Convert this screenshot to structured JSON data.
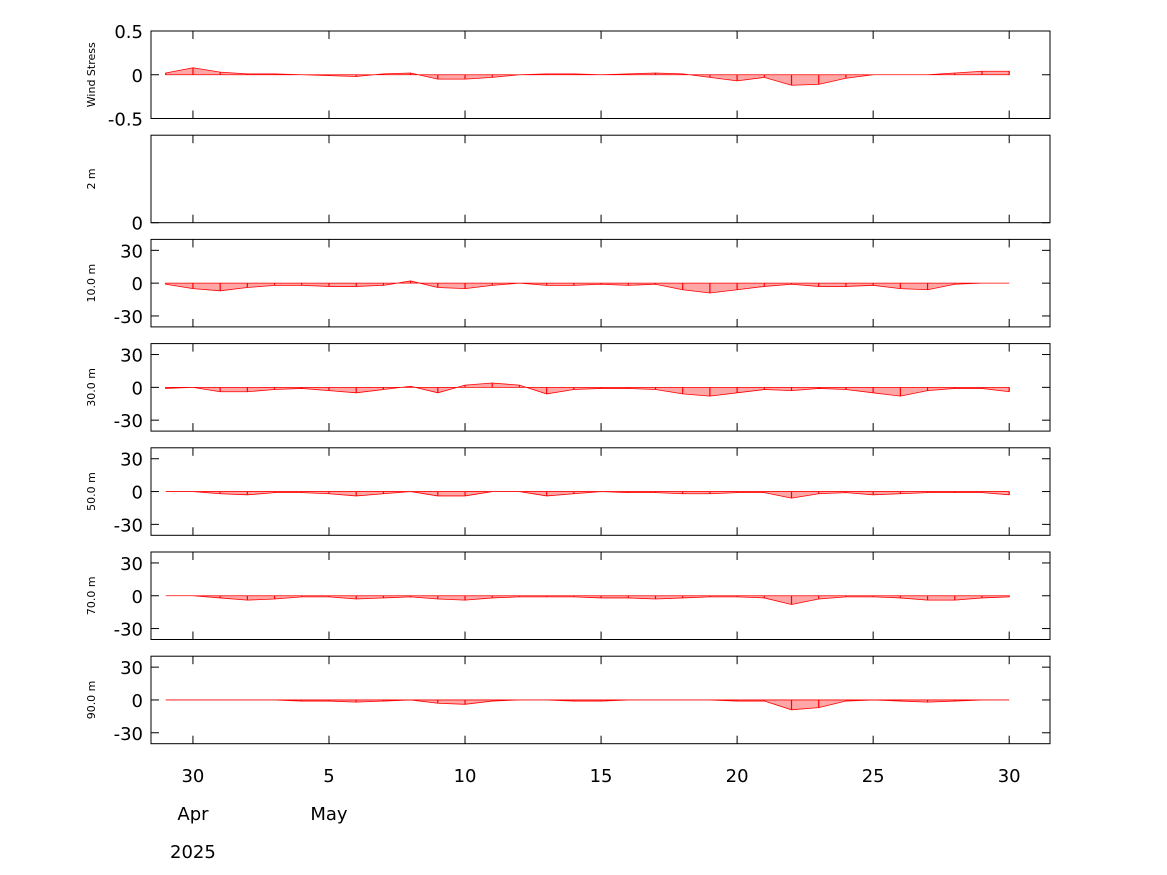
{
  "chart_data": {
    "type": "stick",
    "x": [
      "2025-04-29",
      "2025-04-30",
      "2025-05-01",
      "2025-05-02",
      "2025-05-03",
      "2025-05-04",
      "2025-05-05",
      "2025-05-06",
      "2025-05-07",
      "2025-05-08",
      "2025-05-09",
      "2025-05-10",
      "2025-05-11",
      "2025-05-12",
      "2025-05-13",
      "2025-05-14",
      "2025-05-15",
      "2025-05-16",
      "2025-05-17",
      "2025-05-18",
      "2025-05-19",
      "2025-05-20",
      "2025-05-21",
      "2025-05-22",
      "2025-05-23",
      "2025-05-24",
      "2025-05-25",
      "2025-05-26",
      "2025-05-27",
      "2025-05-28",
      "2025-05-29",
      "2025-05-30"
    ],
    "xlim": [
      "2025-04-28T11:00",
      "2025-05-31T12:00"
    ],
    "xticks": [
      {
        "value": "2025-04-30",
        "label": "30"
      },
      {
        "value": "2025-05-05",
        "label": "5"
      },
      {
        "value": "2025-05-10",
        "label": "10"
      },
      {
        "value": "2025-05-15",
        "label": "15"
      },
      {
        "value": "2025-05-20",
        "label": "20"
      },
      {
        "value": "2025-05-25",
        "label": "25"
      },
      {
        "value": "2025-05-30",
        "label": "30"
      }
    ],
    "month_labels": [
      {
        "value": "2025-04-30",
        "label": "Apr"
      },
      {
        "value": "2025-05-05",
        "label": "May"
      }
    ],
    "year_label": {
      "value": "2025-04-30",
      "label": "2025"
    },
    "panels": [
      {
        "ylabel": "Wind Stress",
        "ylim": [
          -0.5,
          0.5
        ],
        "yticks": [
          -0.5,
          0,
          0.5
        ],
        "color": "#ff0000",
        "values": [
          0.02,
          0.08,
          0.03,
          0.01,
          0.01,
          0,
          -0.01,
          -0.02,
          0.01,
          0.02,
          -0.05,
          -0.05,
          -0.03,
          0,
          0.01,
          0.01,
          0,
          0.01,
          0.02,
          0.01,
          -0.03,
          -0.07,
          -0.03,
          -0.12,
          -0.11,
          -0.04,
          0,
          0,
          0,
          0.02,
          0.04,
          0.04
        ]
      },
      {
        "ylabel": "2 m",
        "ylim": [
          0,
          1
        ],
        "yticks": [
          0
        ],
        "color": "#ff0000",
        "values": []
      },
      {
        "ylabel": "10.0 m",
        "ylim": [
          -40,
          40
        ],
        "yticks": [
          -30,
          0,
          30
        ],
        "color": "#ff0000",
        "values": [
          -1,
          -5,
          -7,
          -4,
          -2,
          -2,
          -3,
          -3,
          -2,
          2,
          -4,
          -5,
          -2,
          0,
          -2,
          -2,
          -1,
          -2,
          -1,
          -6,
          -9,
          -6,
          -3,
          -1,
          -3,
          -3,
          -2,
          -5,
          -6,
          -1,
          0,
          0
        ]
      },
      {
        "ylabel": "30.0 m",
        "ylim": [
          -40,
          40
        ],
        "yticks": [
          -30,
          0,
          30
        ],
        "color": "#ff0000",
        "values": [
          -1,
          0,
          -4,
          -4,
          -2,
          -1,
          -3,
          -5,
          -2,
          1,
          -5,
          2,
          4,
          2,
          -6,
          -2,
          -1,
          -1,
          -2,
          -6,
          -8,
          -5,
          -2,
          -3,
          -1,
          -2,
          -5,
          -8,
          -3,
          -1,
          -1,
          -4
        ]
      },
      {
        "ylabel": "50.0 m",
        "ylim": [
          -40,
          40
        ],
        "yticks": [
          -30,
          0,
          30
        ],
        "color": "#ff0000",
        "values": [
          0,
          0,
          -2,
          -3,
          -1,
          -1,
          -2,
          -4,
          -2,
          0,
          -4,
          -4,
          0,
          0,
          -4,
          -2,
          0,
          -1,
          -1,
          -2,
          -2,
          -1,
          -1,
          -6,
          -2,
          -1,
          -3,
          -2,
          -1,
          -1,
          -1,
          -3
        ]
      },
      {
        "ylabel": "70.0 m",
        "ylim": [
          -40,
          40
        ],
        "yticks": [
          -30,
          0,
          30
        ],
        "color": "#ff0000",
        "values": [
          0,
          0,
          -2,
          -4,
          -3,
          -1,
          -1,
          -3,
          -2,
          -1,
          -3,
          -4,
          -2,
          -1,
          -1,
          -1,
          -2,
          -2,
          -3,
          -2,
          -1,
          -1,
          -2,
          -8,
          -3,
          -1,
          -1,
          -2,
          -4,
          -4,
          -2,
          -1
        ]
      },
      {
        "ylabel": "90.0 m",
        "ylim": [
          -40,
          40
        ],
        "yticks": [
          -30,
          0,
          30
        ],
        "color": "#ff0000",
        "values": [
          0,
          0,
          0,
          0,
          0,
          -1,
          -1,
          -2,
          -1,
          0,
          -3,
          -4,
          -1,
          0,
          0,
          -1,
          -1,
          0,
          0,
          0,
          0,
          -1,
          -1,
          -9,
          -7,
          -1,
          0,
          -1,
          -2,
          -1,
          0,
          0
        ]
      }
    ]
  }
}
